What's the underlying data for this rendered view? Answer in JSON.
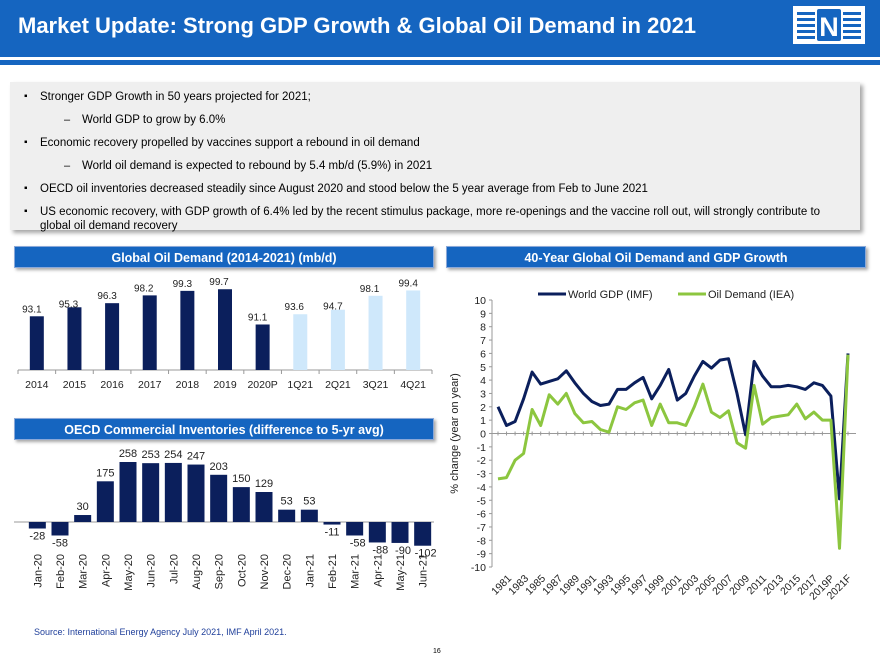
{
  "header": {
    "title": "Market Update: Strong GDP Growth & Global Oil Demand in 2021",
    "logo_letter": "N",
    "colors": {
      "brand_blue": "#1565c0",
      "navy": "#0b1f5c",
      "light_blue": "#cfe8fb",
      "green": "#8cc63f"
    }
  },
  "bullets": [
    {
      "level": 1,
      "text": "Stronger GDP Growth in 50 years projected for 2021;"
    },
    {
      "level": 2,
      "text": "World GDP to grow by 6.0%"
    },
    {
      "level": 1,
      "text": "Economic recovery propelled by vaccines support a rebound in oil demand"
    },
    {
      "level": 2,
      "text": "World oil demand is expected to rebound by 5.4 mb/d (5.9%) in 2021"
    },
    {
      "level": 1,
      "text": "OECD oil inventories decreased steadily since August 2020 and stood below the 5 year average from Feb to June 2021"
    },
    {
      "level": 1,
      "text": "US economic recovery, with GDP growth of 6.4% led by the recent stimulus package, more re-openings and the vaccine roll out, will strongly contribute to global oil demand recovery"
    }
  ],
  "chart_data": [
    {
      "type": "bar",
      "title": "Global Oil Demand (2014-2021) (mb/d)",
      "categories": [
        "2014",
        "2015",
        "2016",
        "2017",
        "2018",
        "2019",
        "2020P",
        "1Q21",
        "2Q21",
        "3Q21",
        "4Q21"
      ],
      "values": [
        93.1,
        95.3,
        96.3,
        98.2,
        99.3,
        99.7,
        91.1,
        93.6,
        94.7,
        98.1,
        99.4
      ],
      "labels": [
        "93.1",
        "95.3",
        "96.3",
        "98.2",
        "99.3",
        "99.7",
        "91.1",
        "93.6",
        "94.7",
        "98.1",
        "99.4"
      ],
      "projected_from_index": 7,
      "ylim": [
        80,
        100
      ]
    },
    {
      "type": "bar",
      "title": "OECD Commercial Inventories (difference to 5-yr avg)",
      "categories": [
        "Jan-20",
        "Feb-20",
        "Mar-20",
        "Apr-20",
        "May-20",
        "Jun-20",
        "Jul-20",
        "Aug-20",
        "Sep-20",
        "Oct-20",
        "Nov-20",
        "Dec-20",
        "Jan-21",
        "Feb-21",
        "Mar-21",
        "Apr-21",
        "May-21",
        "Jun-21"
      ],
      "values": [
        -28,
        -58,
        30,
        175,
        258,
        253,
        254,
        247,
        203,
        150,
        129,
        53,
        53,
        -11,
        -58,
        -88,
        -90,
        -102
      ],
      "labels": [
        "-28",
        "-58",
        "30",
        "175",
        "258",
        "253",
        "254",
        "247",
        "203",
        "150",
        "129",
        "53",
        "53",
        "-11",
        "-58",
        "-88",
        "-90",
        "-102"
      ],
      "ylim": [
        -110,
        270
      ]
    },
    {
      "type": "line",
      "title": "40-Year Global Oil Demand and GDP Growth",
      "ylabel": "% change (year on year)",
      "ylim": [
        -10,
        10
      ],
      "yticks": [
        "10",
        "9",
        "8",
        "7",
        "6",
        "5",
        "4",
        "3",
        "2",
        "1",
        "0",
        "-1",
        "-2",
        "-3",
        "-4",
        "-5",
        "-6",
        "-7",
        "-8",
        "-9",
        "-10"
      ],
      "x_tick_labels": [
        "1981",
        "1983",
        "1985",
        "1987",
        "1989",
        "1991",
        "1993",
        "1995",
        "1997",
        "1999",
        "2001",
        "2003",
        "2005",
        "2007",
        "2009",
        "2011",
        "2013",
        "2015",
        "2017",
        "2019P",
        "2021F"
      ],
      "x_start": 1980,
      "x_end": 2021,
      "series": [
        {
          "name": "World GDP (IMF)",
          "color": "#0b1f5c",
          "values": [
            2.0,
            0.6,
            0.9,
            2.6,
            4.6,
            3.7,
            3.9,
            4.1,
            4.7,
            3.8,
            3.0,
            2.4,
            2.1,
            2.2,
            3.3,
            3.3,
            3.8,
            4.2,
            2.6,
            3.6,
            4.8,
            2.5,
            3.0,
            4.3,
            5.4,
            4.9,
            5.5,
            5.6,
            3.0,
            -0.1,
            5.4,
            4.3,
            3.5,
            3.5,
            3.6,
            3.5,
            3.3,
            3.8,
            3.6,
            2.8,
            -4.9,
            6.0
          ]
        },
        {
          "name": "Oil Demand (IEA)",
          "color": "#8cc63f",
          "values": [
            -3.4,
            -3.3,
            -2.0,
            -1.5,
            1.8,
            0.6,
            2.9,
            2.2,
            3.0,
            1.5,
            0.8,
            0.9,
            0.3,
            0.1,
            2.0,
            1.8,
            2.3,
            2.5,
            0.6,
            2.2,
            0.8,
            0.8,
            0.6,
            2.0,
            3.7,
            1.6,
            1.2,
            1.7,
            -0.7,
            -1.1,
            3.6,
            0.7,
            1.2,
            1.3,
            1.4,
            2.2,
            1.1,
            1.6,
            1.0,
            1.0,
            -8.6,
            5.9
          ]
        }
      ]
    }
  ],
  "footer": {
    "source": "Source: International Energy Agency July 2021, IMF April 2021.",
    "page_number": "16"
  }
}
